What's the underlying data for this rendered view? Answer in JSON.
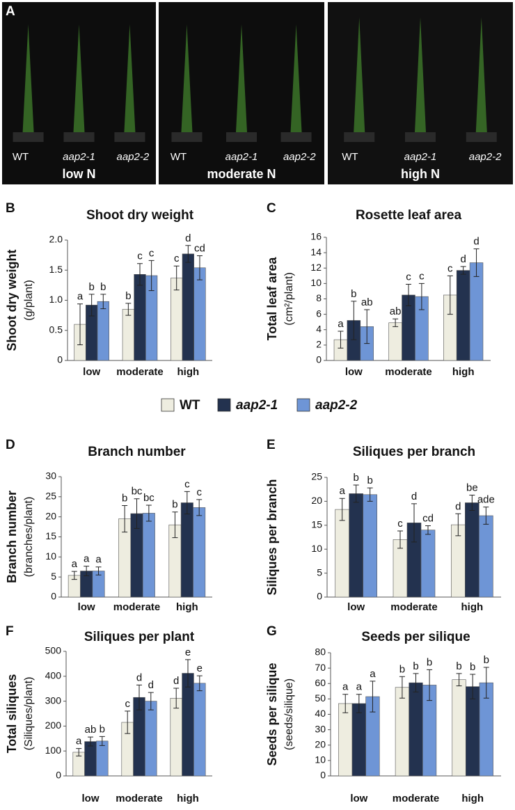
{
  "panel_a": {
    "label": "A",
    "photos": [
      {
        "genotypes": [
          "WT",
          "aap2-1",
          "aap2-2"
        ],
        "condition": "low N"
      },
      {
        "genotypes": [
          "WT",
          "aap2-1",
          "aap2-2"
        ],
        "condition": "moderate N"
      },
      {
        "genotypes": [
          "WT",
          "aap2-1",
          "aap2-2"
        ],
        "condition": "high N"
      }
    ]
  },
  "legend": [
    {
      "name": "WT",
      "color": "#eeede0"
    },
    {
      "name": "aap2-1",
      "color": "#23324f"
    },
    {
      "name": "aap2-2",
      "color": "#6e95d6"
    }
  ],
  "chart_data": [
    {
      "type": "bar",
      "panel": "B",
      "title": "Shoot dry weight",
      "ylabel": "Shoot dry weight",
      "yunit": "(g/plant)",
      "categories": [
        "low",
        "moderate",
        "high"
      ],
      "series": [
        {
          "values": [
            0.6,
            0.85,
            1.37
          ],
          "errors": [
            0.34,
            0.1,
            0.2
          ],
          "letters": [
            "a",
            "b",
            "c"
          ]
        },
        {
          "values": [
            0.92,
            1.43,
            1.77
          ],
          "errors": [
            0.18,
            0.18,
            0.14
          ],
          "letters": [
            "b",
            "c",
            "d"
          ]
        },
        {
          "values": [
            0.98,
            1.41,
            1.54
          ],
          "errors": [
            0.12,
            0.25,
            0.2
          ],
          "letters": [
            "b",
            "c",
            "cd"
          ]
        }
      ],
      "ylim": [
        0,
        2
      ],
      "yticks": [
        0,
        0.5,
        {
          "value": 1,
          "label": "1.0"
        },
        1.5,
        {
          "value": 2,
          "label": "2.0"
        }
      ]
    },
    {
      "type": "bar",
      "panel": "C",
      "title": "Rosette leaf area",
      "ylabel": "Total leaf area",
      "yunit": "(cm²/plant)",
      "categories": [
        "low",
        "moderate",
        "high"
      ],
      "series": [
        {
          "values": [
            2.7,
            4.9,
            8.5
          ],
          "errors": [
            1.1,
            0.5,
            2.5
          ],
          "letters": [
            "a",
            "ab",
            "c"
          ]
        },
        {
          "values": [
            5.2,
            8.5,
            11.7
          ],
          "errors": [
            2.5,
            1.4,
            0.5
          ],
          "letters": [
            "b",
            "c",
            "d"
          ]
        },
        {
          "values": [
            4.4,
            8.3,
            12.7
          ],
          "errors": [
            2.2,
            1.7,
            1.8
          ],
          "letters": [
            "ab",
            "c",
            "d"
          ]
        }
      ],
      "ylim": [
        0,
        16
      ],
      "yticks": [
        0,
        2,
        4,
        6,
        8,
        10,
        12,
        14,
        16
      ]
    },
    {
      "type": "bar",
      "panel": "D",
      "title": "Branch number",
      "ylabel": "Branch number",
      "yunit": "(branches/plant)",
      "categories": [
        "low",
        "moderate",
        "high"
      ],
      "series": [
        {
          "values": [
            5.4,
            19.5,
            18
          ],
          "errors": [
            1,
            3.3,
            3.2
          ],
          "letters": [
            "a",
            "b",
            "b"
          ]
        },
        {
          "values": [
            6.5,
            20.8,
            23.5
          ],
          "errors": [
            1.2,
            3.7,
            2.8
          ],
          "letters": [
            "a",
            "bc",
            "c"
          ]
        },
        {
          "values": [
            6.5,
            20.9,
            22.3
          ],
          "errors": [
            1,
            2,
            2
          ],
          "letters": [
            "a",
            "bc",
            "c"
          ]
        }
      ],
      "ylim": [
        0,
        30
      ],
      "yticks": [
        0,
        5,
        10,
        15,
        20,
        25,
        30
      ]
    },
    {
      "type": "bar",
      "panel": "E",
      "title": "Siliques per branch",
      "ylabel": "Siliques per branch",
      "categories": [
        "low",
        "moderate",
        "high"
      ],
      "series": [
        {
          "values": [
            18.3,
            12,
            15.1
          ],
          "errors": [
            2.3,
            1.8,
            2.3
          ],
          "letters": [
            "a",
            "c",
            "d"
          ]
        },
        {
          "values": [
            21.6,
            15.5,
            19.7
          ],
          "errors": [
            1.8,
            4,
            1.6
          ],
          "letters": [
            "b",
            "d",
            "be"
          ]
        },
        {
          "values": [
            21.4,
            14,
            17
          ],
          "errors": [
            1.4,
            0.9,
            1.8
          ],
          "letters": [
            "b",
            "cd",
            "ade"
          ]
        }
      ],
      "ylim": [
        0,
        25
      ],
      "yticks": [
        0,
        5,
        10,
        15,
        20,
        25
      ]
    },
    {
      "type": "bar",
      "panel": "F",
      "title": "Siliques per plant",
      "ylabel": "Total siliques",
      "yunit": "(Siliques/plant)",
      "categories": [
        "low",
        "moderate",
        "high"
      ],
      "series": [
        {
          "values": [
            95,
            215,
            312
          ],
          "errors": [
            15,
            45,
            40
          ],
          "letters": [
            "a",
            "c",
            "d"
          ]
        },
        {
          "values": [
            138,
            315,
            412
          ],
          "errors": [
            18,
            50,
            55
          ],
          "letters": [
            "ab",
            "d",
            "e"
          ]
        },
        {
          "values": [
            140,
            300,
            372
          ],
          "errors": [
            18,
            35,
            30
          ],
          "letters": [
            "b",
            "d",
            "e"
          ]
        }
      ],
      "ylim": [
        0,
        500
      ],
      "yticks": [
        0,
        100,
        200,
        300,
        400,
        500
      ]
    },
    {
      "type": "bar",
      "panel": "G",
      "title": "Seeds per silique",
      "ylabel": "Seeds per silique",
      "yunit": "(seeds/silique)",
      "categories": [
        "low",
        "moderate",
        "high"
      ],
      "series": [
        {
          "values": [
            47,
            57.5,
            62.5
          ],
          "errors": [
            6,
            7,
            4
          ],
          "letters": [
            "a",
            "b",
            "b"
          ]
        },
        {
          "values": [
            47,
            60.5,
            58
          ],
          "errors": [
            6,
            6,
            8
          ],
          "letters": [
            "a",
            "b",
            "b"
          ]
        },
        {
          "values": [
            51.5,
            59,
            60.5
          ],
          "errors": [
            10,
            10,
            10
          ],
          "letters": [
            "a",
            "b",
            "b"
          ]
        }
      ],
      "ylim": [
        0,
        80
      ],
      "yticks": [
        0,
        10,
        20,
        30,
        40,
        50,
        60,
        70,
        80
      ]
    }
  ]
}
